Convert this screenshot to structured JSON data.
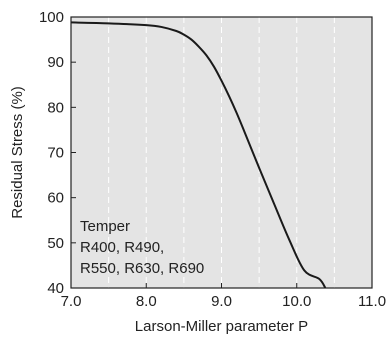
{
  "chart_data": {
    "type": "line",
    "title": "",
    "xlabel": "Larson-Miller parameter P",
    "ylabel": "Residual Stress (%)",
    "xlim": [
      7.0,
      11.0
    ],
    "ylim": [
      40,
      100
    ],
    "x_ticks": [
      "7.0",
      "8.0",
      "9.0",
      "10.0",
      "11.0"
    ],
    "y_ticks": [
      "40",
      "50",
      "60",
      "70",
      "80",
      "90",
      "100"
    ],
    "grid": "dashed vertical lines at 7.5, 8.0, 8.5, 9.0, 9.5, 10.0, 10.5",
    "colors": {
      "plot_background": "#e4e4e4",
      "line": "#1a1a1a",
      "grid": "#ffffff"
    },
    "legend": {
      "placement": "bottom-left",
      "title": "Temper",
      "lines": [
        "R400, R490,",
        "R550, R630, R690"
      ]
    },
    "series": [
      {
        "x": [
          7.0,
          7.5,
          8.0,
          8.2,
          8.4,
          8.5,
          8.6,
          8.7,
          8.8,
          8.9,
          9.0,
          9.1,
          9.2,
          9.3,
          9.5,
          9.7,
          9.9,
          10.1,
          10.3,
          10.38
        ],
        "y": [
          98.8,
          98.6,
          98.2,
          97.8,
          96.9,
          96.1,
          95.0,
          93.4,
          91.5,
          89.0,
          85.9,
          82.5,
          78.8,
          74.8,
          66.6,
          58.6,
          50.7,
          43.9,
          42.0,
          40.0
        ]
      }
    ]
  }
}
